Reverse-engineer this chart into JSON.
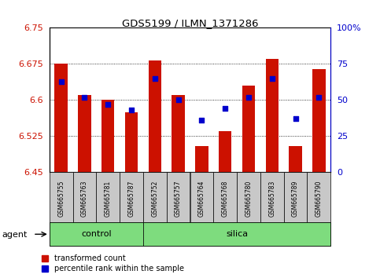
{
  "title": "GDS5199 / ILMN_1371286",
  "samples": [
    "GSM665755",
    "GSM665763",
    "GSM665781",
    "GSM665787",
    "GSM665752",
    "GSM665757",
    "GSM665764",
    "GSM665768",
    "GSM665780",
    "GSM665783",
    "GSM665789",
    "GSM665790"
  ],
  "groups": [
    "control",
    "control",
    "control",
    "control",
    "silica",
    "silica",
    "silica",
    "silica",
    "silica",
    "silica",
    "silica",
    "silica"
  ],
  "transformed_count": [
    6.675,
    6.61,
    6.6,
    6.575,
    6.683,
    6.61,
    6.505,
    6.535,
    6.63,
    6.685,
    6.505,
    6.665
  ],
  "percentile_rank": [
    63,
    52,
    47,
    43,
    65,
    50,
    36,
    44,
    52,
    65,
    37,
    52
  ],
  "ylim_left": [
    6.45,
    6.75
  ],
  "ylim_right": [
    0,
    100
  ],
  "yticks_left": [
    6.45,
    6.525,
    6.6,
    6.675,
    6.75
  ],
  "yticks_right": [
    0,
    25,
    50,
    75,
    100
  ],
  "ytick_labels_left": [
    "6.45",
    "6.525",
    "6.6",
    "6.675",
    "6.75"
  ],
  "ytick_labels_right": [
    "0",
    "25",
    "50",
    "75",
    "100%"
  ],
  "bar_color": "#cc1100",
  "dot_color": "#0000cc",
  "bar_width": 0.55,
  "control_color": "#7edc7e",
  "silica_color": "#7edc7e",
  "agent_label": "agent",
  "group_control": "control",
  "group_silica": "silica",
  "legend_bar": "transformed count",
  "legend_dot": "percentile rank within the sample",
  "grid_color": "black",
  "sample_box_color": "#c8c8c8",
  "plot_bg": "#ffffff",
  "n_control": 4,
  "n_silica": 8
}
